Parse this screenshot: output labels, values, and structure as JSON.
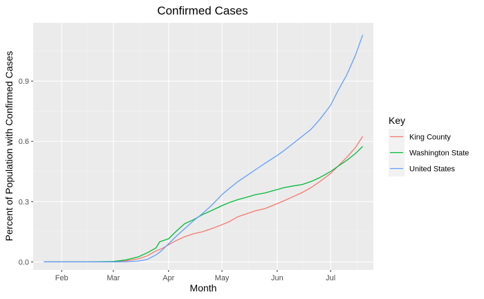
{
  "chart_data": {
    "type": "line",
    "title": "Confirmed Cases",
    "xlabel": "Month",
    "ylabel": "Percent of Population with Confirmed Cases",
    "x_ticks": [
      "Feb",
      "Mar",
      "Apr",
      "May",
      "Jun",
      "Jul"
    ],
    "y_ticks": [
      "0.0",
      "0.3",
      "0.6",
      "0.9"
    ],
    "ylim": [
      -0.04,
      1.19
    ],
    "xlim": [
      "2020-01-16",
      "2020-07-25"
    ],
    "grid": true,
    "legend": {
      "title": "Key",
      "position": "right"
    },
    "series": [
      {
        "name": "King County",
        "color": "#F8766D",
        "points": [
          [
            "2020-01-22",
            0.0
          ],
          [
            "2020-02-15",
            0.0
          ],
          [
            "2020-03-01",
            0.001
          ],
          [
            "2020-03-08",
            0.005
          ],
          [
            "2020-03-15",
            0.015
          ],
          [
            "2020-03-20",
            0.03
          ],
          [
            "2020-03-25",
            0.055
          ],
          [
            "2020-03-28",
            0.065
          ],
          [
            "2020-04-01",
            0.085
          ],
          [
            "2020-04-05",
            0.105
          ],
          [
            "2020-04-10",
            0.125
          ],
          [
            "2020-04-15",
            0.14
          ],
          [
            "2020-04-20",
            0.15
          ],
          [
            "2020-04-25",
            0.165
          ],
          [
            "2020-05-01",
            0.185
          ],
          [
            "2020-05-05",
            0.2
          ],
          [
            "2020-05-10",
            0.225
          ],
          [
            "2020-05-15",
            0.24
          ],
          [
            "2020-05-20",
            0.255
          ],
          [
            "2020-05-25",
            0.265
          ],
          [
            "2020-06-01",
            0.29
          ],
          [
            "2020-06-05",
            0.305
          ],
          [
            "2020-06-10",
            0.325
          ],
          [
            "2020-06-15",
            0.345
          ],
          [
            "2020-06-20",
            0.37
          ],
          [
            "2020-06-25",
            0.4
          ],
          [
            "2020-07-01",
            0.44
          ],
          [
            "2020-07-05",
            0.475
          ],
          [
            "2020-07-10",
            0.52
          ],
          [
            "2020-07-15",
            0.57
          ],
          [
            "2020-07-19",
            0.625
          ]
        ]
      },
      {
        "name": "Washington State",
        "color": "#00BA38",
        "points": [
          [
            "2020-01-22",
            0.0
          ],
          [
            "2020-02-15",
            0.0
          ],
          [
            "2020-03-01",
            0.002
          ],
          [
            "2020-03-08",
            0.01
          ],
          [
            "2020-03-15",
            0.025
          ],
          [
            "2020-03-20",
            0.045
          ],
          [
            "2020-03-25",
            0.07
          ],
          [
            "2020-03-27",
            0.1
          ],
          [
            "2020-04-01",
            0.115
          ],
          [
            "2020-04-05",
            0.15
          ],
          [
            "2020-04-10",
            0.19
          ],
          [
            "2020-04-15",
            0.21
          ],
          [
            "2020-04-20",
            0.235
          ],
          [
            "2020-04-25",
            0.255
          ],
          [
            "2020-05-01",
            0.28
          ],
          [
            "2020-05-05",
            0.295
          ],
          [
            "2020-05-10",
            0.31
          ],
          [
            "2020-05-15",
            0.322
          ],
          [
            "2020-05-20",
            0.335
          ],
          [
            "2020-05-25",
            0.343
          ],
          [
            "2020-06-01",
            0.36
          ],
          [
            "2020-06-05",
            0.37
          ],
          [
            "2020-06-10",
            0.378
          ],
          [
            "2020-06-15",
            0.385
          ],
          [
            "2020-06-20",
            0.4
          ],
          [
            "2020-06-25",
            0.42
          ],
          [
            "2020-07-01",
            0.45
          ],
          [
            "2020-07-05",
            0.475
          ],
          [
            "2020-07-10",
            0.505
          ],
          [
            "2020-07-15",
            0.54
          ],
          [
            "2020-07-19",
            0.575
          ]
        ]
      },
      {
        "name": "United States",
        "color": "#619CFF",
        "points": [
          [
            "2020-01-22",
            0.0
          ],
          [
            "2020-02-15",
            0.0
          ],
          [
            "2020-03-01",
            0.0
          ],
          [
            "2020-03-08",
            0.001
          ],
          [
            "2020-03-15",
            0.004
          ],
          [
            "2020-03-20",
            0.012
          ],
          [
            "2020-03-25",
            0.035
          ],
          [
            "2020-03-28",
            0.055
          ],
          [
            "2020-04-01",
            0.09
          ],
          [
            "2020-04-05",
            0.125
          ],
          [
            "2020-04-10",
            0.165
          ],
          [
            "2020-04-15",
            0.205
          ],
          [
            "2020-04-20",
            0.24
          ],
          [
            "2020-04-25",
            0.28
          ],
          [
            "2020-05-01",
            0.335
          ],
          [
            "2020-05-05",
            0.365
          ],
          [
            "2020-05-10",
            0.4
          ],
          [
            "2020-05-15",
            0.43
          ],
          [
            "2020-05-20",
            0.46
          ],
          [
            "2020-05-25",
            0.49
          ],
          [
            "2020-06-01",
            0.53
          ],
          [
            "2020-06-05",
            0.555
          ],
          [
            "2020-06-10",
            0.59
          ],
          [
            "2020-06-15",
            0.625
          ],
          [
            "2020-06-20",
            0.66
          ],
          [
            "2020-06-25",
            0.71
          ],
          [
            "2020-07-01",
            0.78
          ],
          [
            "2020-07-05",
            0.85
          ],
          [
            "2020-07-10",
            0.93
          ],
          [
            "2020-07-15",
            1.03
          ],
          [
            "2020-07-19",
            1.13
          ]
        ]
      }
    ]
  }
}
